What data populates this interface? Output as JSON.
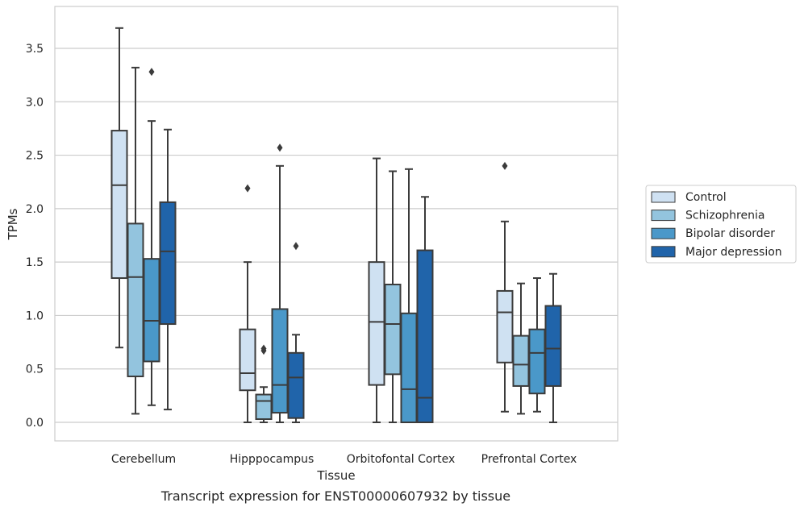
{
  "chart_data": {
    "type": "box",
    "title": "",
    "xlabel": "Tissue",
    "ylabel": "TPMs",
    "caption": "Transcript expression for ENST00000607932 by tissue",
    "ylim": [
      -0.18,
      3.9
    ],
    "yticks": [
      "0.0",
      "0.5",
      "1.0",
      "1.5",
      "2.0",
      "2.5",
      "3.0",
      "3.5"
    ],
    "grid": "horizontal",
    "legend_position": "right",
    "categories": [
      "Cerebellum",
      "Hipppocampus",
      "Orbitofontal Cortex",
      "Prefrontal Cortex"
    ],
    "series": [
      {
        "name": "Control",
        "color": "#cfe1f2",
        "boxes": [
          {
            "whislo": 0.7,
            "q1": 1.35,
            "med": 2.22,
            "q3": 2.73,
            "whishi": 3.69,
            "fliers": []
          },
          {
            "whislo": 0.0,
            "q1": 0.3,
            "med": 0.46,
            "q3": 0.87,
            "whishi": 1.5,
            "fliers": [
              2.19
            ]
          },
          {
            "whislo": 0.0,
            "q1": 0.35,
            "med": 0.94,
            "q3": 1.5,
            "whishi": 2.47,
            "fliers": []
          },
          {
            "whislo": 0.1,
            "q1": 0.56,
            "med": 1.03,
            "q3": 1.23,
            "whishi": 1.88,
            "fliers": [
              2.4
            ]
          }
        ]
      },
      {
        "name": "Schizophrenia",
        "color": "#93c4de",
        "boxes": [
          {
            "whislo": 0.08,
            "q1": 0.43,
            "med": 1.36,
            "q3": 1.86,
            "whishi": 3.32,
            "fliers": []
          },
          {
            "whislo": 0.0,
            "q1": 0.03,
            "med": 0.2,
            "q3": 0.26,
            "whishi": 0.33,
            "fliers": [
              0.67,
              0.69
            ]
          },
          {
            "whislo": 0.0,
            "q1": 0.45,
            "med": 0.92,
            "q3": 1.29,
            "whishi": 2.35,
            "fliers": []
          },
          {
            "whislo": 0.08,
            "q1": 0.34,
            "med": 0.54,
            "q3": 0.81,
            "whishi": 1.3,
            "fliers": []
          }
        ]
      },
      {
        "name": "Bipolar disorder",
        "color": "#4a98c9",
        "boxes": [
          {
            "whislo": 0.16,
            "q1": 0.57,
            "med": 0.95,
            "q3": 1.53,
            "whishi": 2.82,
            "fliers": [
              3.28
            ]
          },
          {
            "whislo": 0.0,
            "q1": 0.09,
            "med": 0.35,
            "q3": 1.06,
            "whishi": 2.4,
            "fliers": [
              2.57
            ]
          },
          {
            "whislo": 0.0,
            "q1": 0.0,
            "med": 0.31,
            "q3": 1.02,
            "whishi": 2.37,
            "fliers": []
          },
          {
            "whislo": 0.1,
            "q1": 0.27,
            "med": 0.65,
            "q3": 0.87,
            "whishi": 1.35,
            "fliers": []
          }
        ]
      },
      {
        "name": "Major depression",
        "color": "#2064aa",
        "boxes": [
          {
            "whislo": 0.12,
            "q1": 0.92,
            "med": 1.6,
            "q3": 2.06,
            "whishi": 2.74,
            "fliers": []
          },
          {
            "whislo": 0.0,
            "q1": 0.04,
            "med": 0.42,
            "q3": 0.65,
            "whishi": 0.82,
            "fliers": [
              1.65
            ]
          },
          {
            "whislo": 0.0,
            "q1": 0.0,
            "med": 0.23,
            "q3": 1.61,
            "whishi": 2.11,
            "fliers": []
          },
          {
            "whislo": 0.0,
            "q1": 0.34,
            "med": 0.69,
            "q3": 1.09,
            "whishi": 1.39,
            "fliers": []
          }
        ]
      }
    ]
  }
}
